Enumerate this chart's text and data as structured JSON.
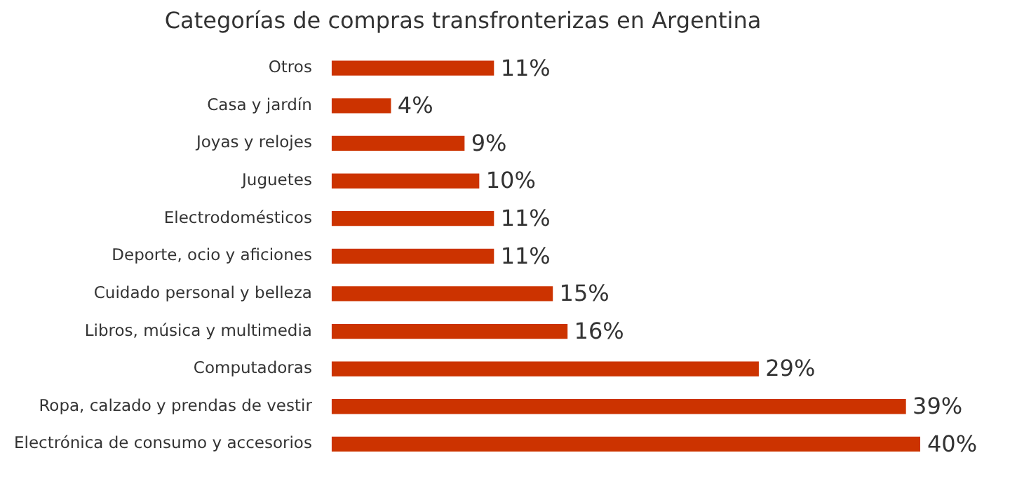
{
  "chart_data": {
    "type": "bar",
    "orientation": "horizontal",
    "title": "Categorías de compras transfronterizas en Argentina",
    "categories": [
      "Otros",
      "Casa y jardín",
      "Joyas y relojes",
      "Juguetes",
      "Electrodomésticos",
      "Deporte, ocio y aficiones",
      "Cuidado personal y belleza",
      "Libros, música y multimedia",
      "Computadoras",
      "Ropa, calzado y prendas de vestir",
      "Electrónica de consumo y accesorios"
    ],
    "values": [
      11,
      4,
      9,
      10,
      11,
      11,
      15,
      16,
      29,
      39,
      40
    ],
    "value_labels": [
      "11%",
      "4%",
      "9%",
      "10%",
      "11%",
      "11%",
      "15%",
      "16%",
      "29%",
      "39%",
      "40%"
    ],
    "color": "#cc3300",
    "legend": false
  }
}
